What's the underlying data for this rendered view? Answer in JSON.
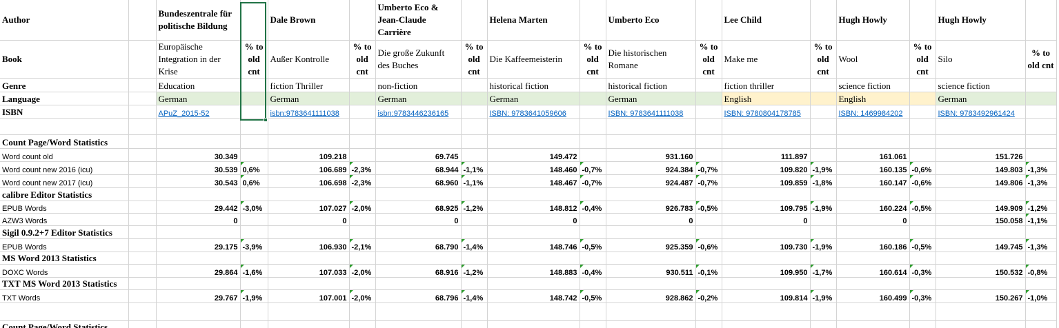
{
  "labels": {
    "author": "Author",
    "book": "Book",
    "genre": "Genre",
    "language": "Language",
    "isbn": "ISBN",
    "pct_header": "% to old cnt"
  },
  "books": [
    {
      "author": "Bundeszentrale für politische Bildung",
      "title": "Europäische Integration in der Krise",
      "genre": "Education",
      "language": "German",
      "isbn": "APuZ_2015-52",
      "lang_color": "#e2efda"
    },
    {
      "author": "Dale Brown",
      "title": "Außer Kontrolle",
      "genre": "fiction Thriller",
      "language": "German",
      "isbn": "isbn:9783641111038",
      "lang_color": "#e2efda"
    },
    {
      "author": "Umberto Eco & Jean-Claude Carrière",
      "title": "Die große Zukunft des Buches",
      "genre": "non-fiction",
      "language": "German",
      "isbn": "isbn:9783446236165",
      "lang_color": "#e2efda"
    },
    {
      "author": "Helena Marten",
      "title": "Die Kaffeemeisterin",
      "genre": "historical fiction",
      "language": "German",
      "isbn": "ISBN: 9783641059606",
      "lang_color": "#e2efda"
    },
    {
      "author": "Umberto Eco",
      "title": "Die historischen Romane",
      "genre": "historical fiction",
      "language": "German",
      "isbn": "ISBN: 9783641111038",
      "lang_color": "#e2efda"
    },
    {
      "author": "Lee Child",
      "title": "Make me",
      "genre": "fiction thriller",
      "language": "English",
      "isbn": "ISBN: 9780804178785",
      "lang_color": "#fff2cc"
    },
    {
      "author": "Hugh Howly",
      "title": "Wool",
      "genre": "science fiction",
      "language": "English",
      "isbn": "ISBN: 1469984202",
      "lang_color": "#fff2cc"
    },
    {
      "author": "Hugh Howly",
      "title": "Silo",
      "genre": "science fiction",
      "language": "German",
      "isbn": "ISBN: 9783492961424",
      "lang_color": "#e2efda"
    }
  ],
  "rows": [
    {
      "label": "Count Page/Word Statistics",
      "type": "section"
    },
    {
      "label": "Word count old",
      "type": "data",
      "values": [
        "30.349",
        "109.218",
        "69.745",
        "149.472",
        "931.160",
        "111.897",
        "161.061",
        "151.726"
      ],
      "pcts": [
        "",
        "",
        "",
        "",
        "",
        "",
        "",
        ""
      ]
    },
    {
      "label": "Word count new 2016 (icu)",
      "type": "data",
      "values": [
        "30.539",
        "106.689",
        "68.944",
        "148.460",
        "924.384",
        "109.820",
        "160.135",
        "149.803"
      ],
      "pcts": [
        "0,6%",
        "-2,3%",
        "-1,1%",
        "-0,7%",
        "-0,7%",
        "-1,9%",
        "-0,6%",
        "-1,3%"
      ]
    },
    {
      "label": "Word count new 2017 (icu)",
      "type": "data",
      "values": [
        "30.543",
        "106.698",
        "68.960",
        "148.467",
        "924.487",
        "109.859",
        "160.147",
        "149.806"
      ],
      "pcts": [
        "0,6%",
        "-2,3%",
        "-1,1%",
        "-0,7%",
        "-0,7%",
        "-1,8%",
        "-0,6%",
        "-1,3%"
      ]
    },
    {
      "label": "calibre Editor Statistics",
      "type": "section"
    },
    {
      "label": "EPUB Words",
      "type": "data",
      "values": [
        "29.442",
        "107.027",
        "68.925",
        "148.812",
        "926.783",
        "109.795",
        "160.224",
        "149.909"
      ],
      "pcts": [
        "-3,0%",
        "-2,0%",
        "-1,2%",
        "-0,4%",
        "-0,5%",
        "-1,9%",
        "-0,5%",
        "-1,2%"
      ]
    },
    {
      "label": "AZW3 Words",
      "type": "data",
      "values": [
        "0",
        "0",
        "0",
        "0",
        "0",
        "0",
        "0",
        "150.058"
      ],
      "pcts": [
        "",
        "",
        "",
        "",
        "",
        "",
        "",
        "-1,1%"
      ]
    },
    {
      "label": "Sigil 0.9.2+7 Editor Statistics",
      "type": "section"
    },
    {
      "label": "EPUB Words",
      "type": "data",
      "values": [
        "29.175",
        "106.930",
        "68.790",
        "148.746",
        "925.359",
        "109.730",
        "160.186",
        "149.745"
      ],
      "pcts": [
        "-3,9%",
        "-2,1%",
        "-1,4%",
        "-0,5%",
        "-0,6%",
        "-1,9%",
        "-0,5%",
        "-1,3%"
      ]
    },
    {
      "label": "MS Word 2013 Statistics",
      "type": "section"
    },
    {
      "label": "DOXC Words",
      "type": "data",
      "values": [
        "29.864",
        "107.033",
        "68.916",
        "148.883",
        "930.511",
        "109.950",
        "160.614",
        "150.532"
      ],
      "pcts": [
        "-1,6%",
        "-2,0%",
        "-1,2%",
        "-0,4%",
        "-0,1%",
        "-1,7%",
        "-0,3%",
        "-0,8%"
      ]
    },
    {
      "label": "TXT MS Word 2013 Statistics",
      "type": "section"
    },
    {
      "label": "TXT Words",
      "type": "data",
      "values": [
        "29.767",
        "107.001",
        "68.796",
        "148.742",
        "928.862",
        "109.814",
        "160.499",
        "150.267"
      ],
      "pcts": [
        "-1,9%",
        "-2,0%",
        "-1,4%",
        "-0,5%",
        "-0,2%",
        "-1,9%",
        "-0,3%",
        "-1,0%"
      ]
    },
    {
      "label": "",
      "type": "blank"
    },
    {
      "label": "Count Page/Word Statistics",
      "type": "section"
    }
  ]
}
